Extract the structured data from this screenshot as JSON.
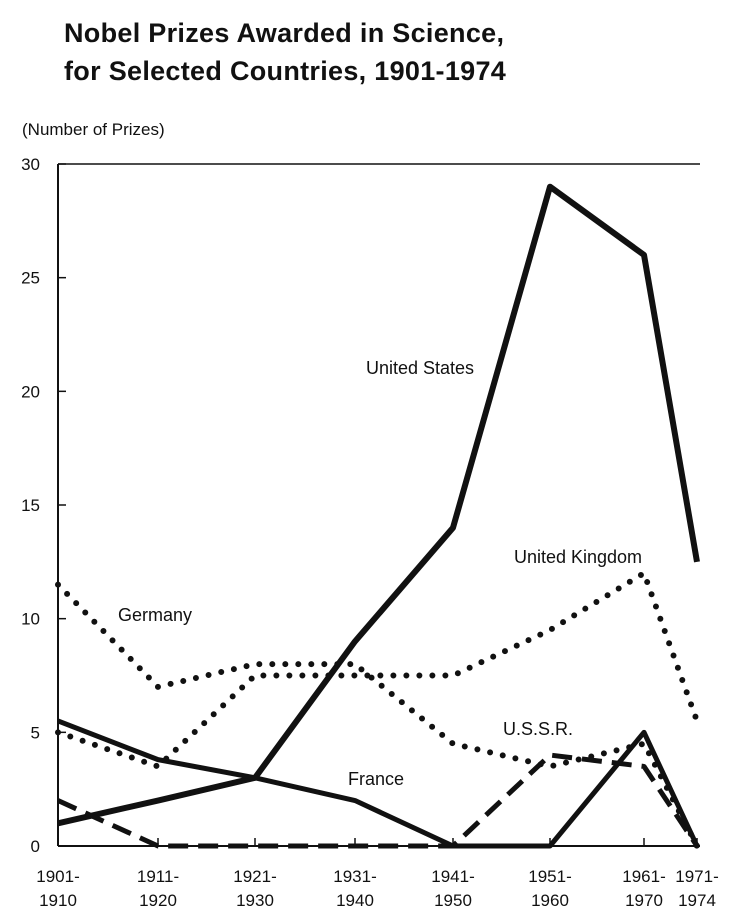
{
  "title_line1": "Nobel Prizes Awarded in Science,",
  "title_line2": "for Selected Countries, 1901-1974",
  "unit_label": "(Number of Prizes)",
  "chart_data": {
    "type": "line",
    "title": "Nobel Prizes Awarded in Science, for Selected Countries, 1901-1974",
    "ylabel": "(Number of Prizes)",
    "ylim": [
      0,
      30
    ],
    "yticks": [
      "0",
      "5",
      "10",
      "15",
      "20",
      "25",
      "30"
    ],
    "categories": [
      "1901-1910",
      "1911-1920",
      "1921-1930",
      "1931-1940",
      "1941-1950",
      "1951-1960",
      "1961-1970",
      "1971-1974"
    ],
    "x_tick_labels": [
      [
        "1901-",
        "1910"
      ],
      [
        "1911-",
        "1920"
      ],
      [
        "1921-",
        "1930"
      ],
      [
        "1931-",
        "1940"
      ],
      [
        "1941-",
        "1950"
      ],
      [
        "1951-",
        "1960"
      ],
      [
        "1961-",
        "1970"
      ],
      [
        "1971-",
        "1974"
      ]
    ],
    "series": [
      {
        "name": "United States",
        "style": "solid-thick",
        "color": "#111111",
        "values": [
          1,
          2,
          3,
          9,
          14,
          29,
          26,
          12.5
        ]
      },
      {
        "name": "United Kingdom",
        "style": "dotted",
        "color": "#111111",
        "values": [
          5,
          3.5,
          7.5,
          7.5,
          7.5,
          9.5,
          12,
          5.5
        ]
      },
      {
        "name": "Germany",
        "style": "dotted",
        "color": "#111111",
        "values": [
          11.5,
          7,
          8,
          8,
          4.5,
          3.5,
          4.5,
          0
        ]
      },
      {
        "name": "France",
        "style": "solid",
        "color": "#111111",
        "values": [
          5.5,
          3.8,
          3,
          2,
          0,
          0,
          5,
          0
        ]
      },
      {
        "name": "U.S.S.R.",
        "style": "dashed",
        "color": "#111111",
        "values": [
          2,
          0,
          0,
          0,
          0,
          4,
          3.5,
          0
        ]
      }
    ],
    "annotations": [
      "United States",
      "United Kingdom",
      "Germany",
      "France",
      "U.S.S.R."
    ],
    "grid": false
  }
}
